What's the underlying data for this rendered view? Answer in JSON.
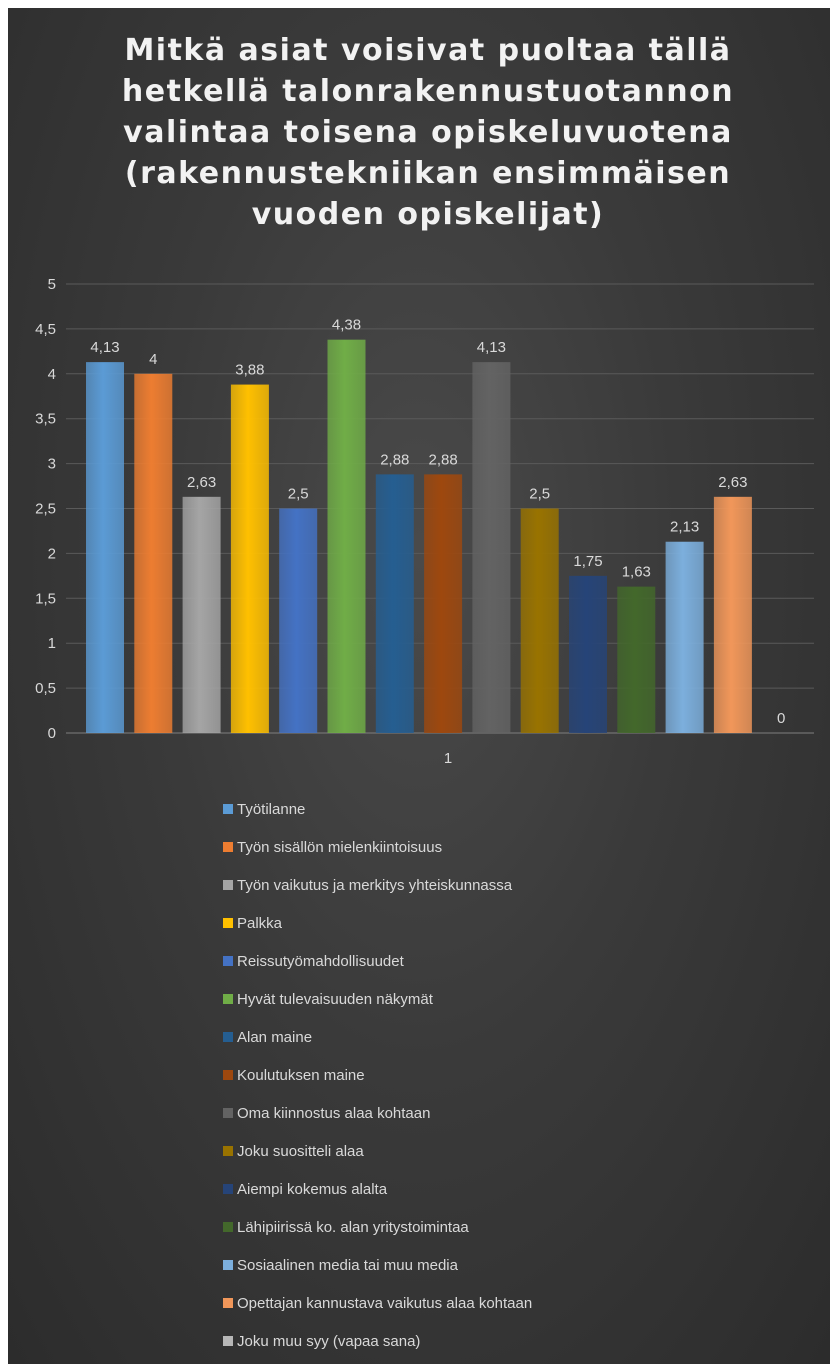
{
  "chart_data": {
    "type": "bar",
    "title": "Mitkä asiat voisivat puoltaa tällä\nhetkellä talonrakennustuotannon\nvalintaa toisena opiskeluvuotena\n(rakennustekniikan ensimmäisen\nvuoden opiskelijat)",
    "categories": [
      "1"
    ],
    "ylim": [
      0,
      5
    ],
    "yticks": [
      "0",
      "0,5",
      "1",
      "1,5",
      "2",
      "2,5",
      "3",
      "3,5",
      "4",
      "4,5",
      "5"
    ],
    "grid": true,
    "legend_position": "bottom",
    "series": [
      {
        "name": "Työtilanne",
        "value": 4.13,
        "label": "4,13",
        "color": "#5b9bd5"
      },
      {
        "name": "Työn sisällön mielenkiintoisuus",
        "value": 4.0,
        "label": "4",
        "color": "#ed7d31"
      },
      {
        "name": "Työn vaikutus ja merkitys yhteiskunnassa",
        "value": 2.63,
        "label": "2,63",
        "color": "#a5a5a5"
      },
      {
        "name": "Palkka",
        "value": 3.88,
        "label": "3,88",
        "color": "#ffc000"
      },
      {
        "name": "Reissutyömahdollisuudet",
        "value": 2.5,
        "label": "2,5",
        "color": "#4472c4"
      },
      {
        "name": "Hyvät tulevaisuuden näkymät",
        "value": 4.38,
        "label": "4,38",
        "color": "#70ad47"
      },
      {
        "name": "Alan maine",
        "value": 2.88,
        "label": "2,88",
        "color": "#255e91"
      },
      {
        "name": "Koulutuksen maine",
        "value": 2.88,
        "label": "2,88",
        "color": "#9e480e"
      },
      {
        "name": "Oma kiinnostus alaa kohtaan",
        "value": 4.13,
        "label": "4,13",
        "color": "#636363"
      },
      {
        "name": "Joku suositteli alaa",
        "value": 2.5,
        "label": "2,5",
        "color": "#997300"
      },
      {
        "name": "Aiempi kokemus alalta",
        "value": 1.75,
        "label": "1,75",
        "color": "#264478"
      },
      {
        "name": "Lähipiirissä ko. alan yritystoimintaa",
        "value": 1.63,
        "label": "1,63",
        "color": "#43682b"
      },
      {
        "name": "Sosiaalinen media tai muu media",
        "value": 2.13,
        "label": "2,13",
        "color": "#7cafdd"
      },
      {
        "name": "Opettajan kannustava vaikutus alaa  kohtaan",
        "value": 2.63,
        "label": "2,63",
        "color": "#f1975a"
      },
      {
        "name": "Joku muu syy (vapaa sana)",
        "value": 0,
        "label": "0",
        "color": "#b7b7b7"
      }
    ]
  }
}
